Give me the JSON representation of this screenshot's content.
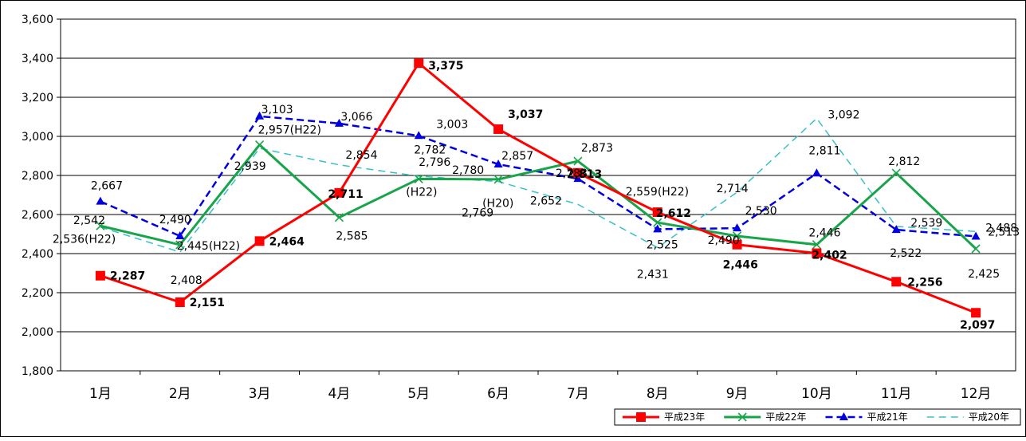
{
  "chart_data": {
    "type": "line",
    "categories": [
      "1月",
      "2月",
      "3月",
      "4月",
      "5月",
      "6月",
      "7月",
      "8月",
      "9月",
      "10月",
      "11月",
      "12月"
    ],
    "ylim": [
      1800,
      3600
    ],
    "yticks": [
      "1,800",
      "2,000",
      "2,200",
      "2,400",
      "2,600",
      "2,800",
      "3,000",
      "3,200",
      "3,400",
      "3,600"
    ],
    "grid": true,
    "legend_position": "bottom-right",
    "series": [
      {
        "name": "平成23年",
        "key": "h23",
        "color": "#ff0000",
        "values": [
          2287,
          2151,
          2464,
          2711,
          3375,
          3037,
          2813,
          2612,
          2446,
          2402,
          2256,
          2097
        ]
      },
      {
        "name": "平成22年",
        "key": "h22",
        "color": "#18a54a",
        "values": [
          2542,
          2445,
          2957,
          2585,
          2782,
          2780,
          2873,
          2559,
          2490,
          2446,
          2812,
          2425
        ]
      },
      {
        "name": "平成21年",
        "key": "h21",
        "color": "#0000e0",
        "values": [
          2667,
          2490,
          3103,
          3066,
          3003,
          2857,
          2783,
          2525,
          2530,
          2811,
          2522,
          2488
        ]
      },
      {
        "name": "平成20年",
        "key": "h20",
        "color": "#38c0c8",
        "values": [
          2536,
          2408,
          2939,
          2854,
          2796,
          2769,
          2652,
          2431,
          2714,
          3092,
          2539,
          2513
        ]
      }
    ],
    "point_labels": [
      {
        "text": "2,287",
        "series": "h23",
        "i": 0,
        "bold": true
      },
      {
        "text": "2,151",
        "series": "h23",
        "i": 1,
        "bold": true
      },
      {
        "text": "2,464",
        "series": "h23",
        "i": 2,
        "bold": true
      },
      {
        "text": "2,711",
        "series": "h23",
        "i": 3,
        "bold": true
      },
      {
        "text": "3,375",
        "series": "h23",
        "i": 4,
        "bold": true
      },
      {
        "text": "3,037",
        "series": "h23",
        "i": 5,
        "bold": true
      },
      {
        "text": "2,813",
        "series": "h23",
        "i": 6,
        "bold": true
      },
      {
        "text": "2,612",
        "series": "h23",
        "i": 7,
        "bold": true
      },
      {
        "text": "2,446",
        "series": "h23",
        "i": 8,
        "bold": true
      },
      {
        "text": "2,402",
        "series": "h23",
        "i": 9,
        "bold": true
      },
      {
        "text": "2,256",
        "series": "h23",
        "i": 10,
        "bold": true
      },
      {
        "text": "2,097",
        "series": "h23",
        "i": 11,
        "bold": true
      },
      {
        "text": "2,542",
        "series": "h22",
        "i": 0
      },
      {
        "text": "2,445(H22)",
        "series": "h22",
        "i": 1
      },
      {
        "text": "2,957(H22)",
        "series": "h22",
        "i": 2
      },
      {
        "text": "2,585",
        "series": "h22",
        "i": 3
      },
      {
        "text": "2,782",
        "series": "h22",
        "i": 4
      },
      {
        "text": "(H22)",
        "series": "h22",
        "i": 4
      },
      {
        "text": "2,780",
        "series": "h22",
        "i": 5
      },
      {
        "text": "2,873",
        "series": "h22",
        "i": 6
      },
      {
        "text": "2,559(H22)",
        "series": "h22",
        "i": 7
      },
      {
        "text": "2,490",
        "series": "h22",
        "i": 8
      },
      {
        "text": "2,446",
        "series": "h22",
        "i": 9
      },
      {
        "text": "2,812",
        "series": "h22",
        "i": 10
      },
      {
        "text": "2,425",
        "series": "h22",
        "i": 11
      },
      {
        "text": "2,667",
        "series": "h21",
        "i": 0
      },
      {
        "text": "2,490",
        "series": "h21",
        "i": 1
      },
      {
        "text": "3,103",
        "series": "h21",
        "i": 2
      },
      {
        "text": "3,066",
        "series": "h21",
        "i": 3
      },
      {
        "text": "3,003",
        "series": "h21",
        "i": 4
      },
      {
        "text": "2,857",
        "series": "h21",
        "i": 5
      },
      {
        "text": "2,783",
        "series": "h21",
        "i": 6
      },
      {
        "text": "2,525",
        "series": "h21",
        "i": 7
      },
      {
        "text": "2,530",
        "series": "h21",
        "i": 8
      },
      {
        "text": "2,811",
        "series": "h21",
        "i": 9
      },
      {
        "text": "2,522",
        "series": "h21",
        "i": 10
      },
      {
        "text": "2,488",
        "series": "h21",
        "i": 11
      },
      {
        "text": "2,536(H22)",
        "series": "h20",
        "i": 0
      },
      {
        "text": "2,408",
        "series": "h20",
        "i": 1
      },
      {
        "text": "2,939",
        "series": "h20",
        "i": 2
      },
      {
        "text": "2,854",
        "series": "h20",
        "i": 3
      },
      {
        "text": "2,796",
        "series": "h20",
        "i": 4
      },
      {
        "text": "2,769",
        "series": "h20",
        "i": 5
      },
      {
        "text": "(H20)",
        "series": "h20",
        "i": 5
      },
      {
        "text": "2,652",
        "series": "h20",
        "i": 6
      },
      {
        "text": "2,431",
        "series": "h20",
        "i": 7
      },
      {
        "text": "2,714",
        "series": "h20",
        "i": 8
      },
      {
        "text": "3,092",
        "series": "h20",
        "i": 9
      },
      {
        "text": "2,539",
        "series": "h20",
        "i": 10
      },
      {
        "text": "2,513",
        "series": "h20",
        "i": 11
      }
    ]
  }
}
